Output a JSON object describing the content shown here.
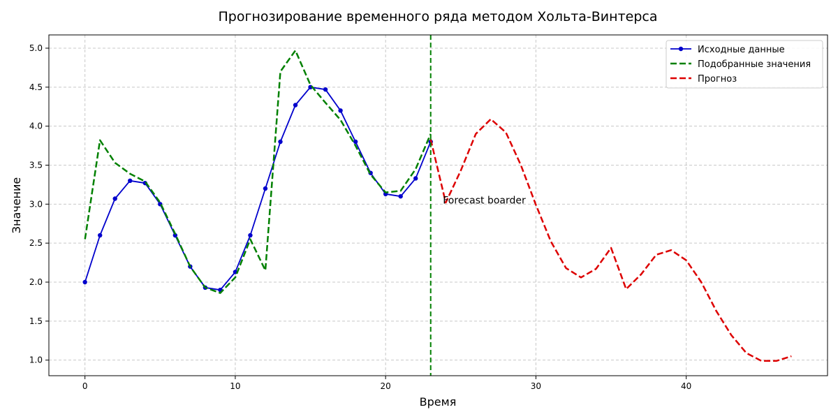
{
  "chart_data": {
    "type": "line",
    "title": "Прогнозирование временного ряда методом Хольта-Винтерса",
    "xlabel": "Время",
    "ylabel": "Значение",
    "xlim": [
      -2.4,
      49.4
    ],
    "ylim": [
      0.8,
      5.17
    ],
    "xticks": [
      0,
      10,
      20,
      30,
      40
    ],
    "yticks": [
      1.0,
      1.5,
      2.0,
      2.5,
      3.0,
      3.5,
      4.0,
      4.5,
      5.0
    ],
    "ytick_labels": [
      "1.0",
      "1.5",
      "2.0",
      "2.5",
      "3.0",
      "3.5",
      "4.0",
      "4.5",
      "5.0"
    ],
    "grid": true,
    "legend_position": "top-right",
    "series": [
      {
        "name": "Исходные данные",
        "color": "#0000cc",
        "style": "solid-markers",
        "x": [
          0,
          1,
          2,
          3,
          4,
          5,
          6,
          7,
          8,
          9,
          10,
          11,
          12,
          13,
          14,
          15,
          16,
          17,
          18,
          19,
          20,
          21,
          22,
          23
        ],
        "values": [
          2.0,
          2.6,
          3.07,
          3.3,
          3.27,
          3.0,
          2.6,
          2.2,
          1.93,
          1.9,
          2.13,
          2.6,
          3.2,
          3.8,
          4.27,
          4.5,
          4.47,
          4.2,
          3.8,
          3.4,
          3.13,
          3.1,
          3.33,
          3.8
        ]
      },
      {
        "name": "Подобранные значения",
        "color": "#008000",
        "style": "dashed",
        "x": [
          0,
          1,
          2,
          3,
          4,
          5,
          6,
          7,
          8,
          9,
          10,
          11,
          12,
          13,
          14,
          15,
          16,
          17,
          18,
          19,
          20,
          21,
          22,
          23
        ],
        "values": [
          2.55,
          3.82,
          3.53,
          3.39,
          3.29,
          3.02,
          2.62,
          2.2,
          1.93,
          1.86,
          2.06,
          2.55,
          2.15,
          4.7,
          4.97,
          4.53,
          4.3,
          4.08,
          3.75,
          3.38,
          3.15,
          3.17,
          3.45,
          3.9
        ]
      },
      {
        "name": "Прогноз",
        "color": "#dd0000",
        "style": "dashed",
        "x": [
          23,
          24,
          25,
          26,
          27,
          28,
          29,
          30,
          31,
          32,
          33,
          34,
          35,
          36,
          37,
          38,
          39,
          40,
          41,
          42,
          43,
          44,
          45,
          46,
          47
        ],
        "values": [
          3.83,
          3.02,
          3.43,
          3.9,
          4.09,
          3.92,
          3.5,
          2.99,
          2.52,
          2.18,
          2.06,
          2.17,
          2.44,
          1.91,
          2.1,
          2.35,
          2.41,
          2.28,
          2.0,
          1.63,
          1.32,
          1.09,
          0.99,
          0.99,
          1.05
        ]
      }
    ],
    "vline": {
      "x": 23,
      "color": "#008000"
    },
    "annotation": {
      "text": "Forecast boarder",
      "x": 24,
      "y": 3.0
    }
  }
}
